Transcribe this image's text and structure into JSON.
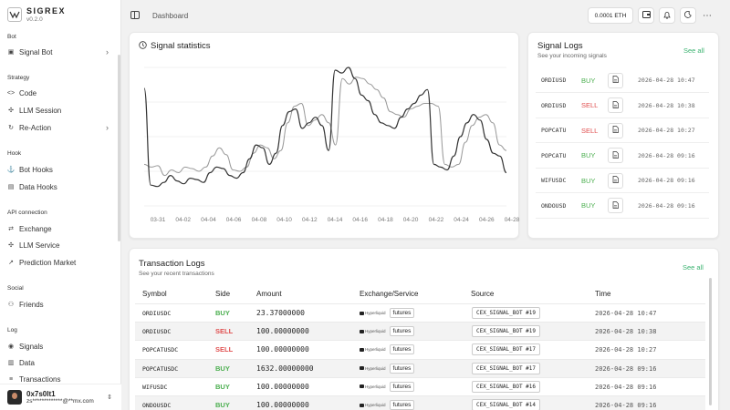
{
  "app": {
    "name": "SIGREX",
    "version": "v0.2.0"
  },
  "sidebar": {
    "sections": [
      {
        "label": "Bot",
        "items": [
          {
            "label": "Signal Bot",
            "icon": "bot-icon",
            "chevron": true
          }
        ]
      },
      {
        "label": "Strategy",
        "items": [
          {
            "label": "Code",
            "icon": "code-icon",
            "chevron": false
          },
          {
            "label": "LLM Session",
            "icon": "llm-icon",
            "chevron": false
          },
          {
            "label": "Re-Action",
            "icon": "reaction-icon",
            "chevron": true
          }
        ]
      },
      {
        "label": "Hook",
        "items": [
          {
            "label": "Bot Hooks",
            "icon": "hook-icon",
            "chevron": false
          },
          {
            "label": "Data Hooks",
            "icon": "data-hook-icon",
            "chevron": false
          }
        ]
      },
      {
        "label": "API connection",
        "items": [
          {
            "label": "Exchange",
            "icon": "exchange-icon",
            "chevron": false
          },
          {
            "label": "LLM Service",
            "icon": "llm-service-icon",
            "chevron": false
          },
          {
            "label": "Prediction Market",
            "icon": "prediction-icon",
            "chevron": false
          }
        ]
      },
      {
        "label": "Social",
        "items": [
          {
            "label": "Friends",
            "icon": "friends-icon",
            "chevron": false
          }
        ]
      },
      {
        "label": "Log",
        "items": [
          {
            "label": "Signals",
            "icon": "signals-icon",
            "chevron": false
          },
          {
            "label": "Data",
            "icon": "data-icon",
            "chevron": false
          },
          {
            "label": "Transactions",
            "icon": "transactions-icon",
            "chevron": false
          }
        ]
      }
    ],
    "user": {
      "name": "0x7s0lt1",
      "email": "zs*************@**mx.com"
    }
  },
  "topbar": {
    "breadcrumb": "Dashboard",
    "balance": "0.0001 ETH"
  },
  "statistics": {
    "title": "Signal statistics",
    "chart_data": {
      "type": "line",
      "x_ticks": [
        "03-31",
        "04-02",
        "04-04",
        "04-06",
        "04-08",
        "04-10",
        "04-12",
        "04-14",
        "04-16",
        "04-18",
        "04-20",
        "04-22",
        "04-24",
        "04-26",
        "04-28"
      ],
      "series": [
        {
          "values": [
            30,
            28,
            29,
            22,
            26,
            24,
            28,
            27,
            25,
            28,
            36,
            42,
            37,
            26,
            25,
            28,
            38,
            44,
            42,
            34,
            40,
            60,
            72,
            74,
            58,
            62,
            66,
            60,
            44,
            92,
            88,
            93,
            92,
            88,
            84,
            78,
            68,
            66,
            64,
            70,
            72,
            74,
            74,
            72,
            30,
            28,
            30,
            46,
            58,
            64,
            66,
            60,
            44,
            40
          ]
        },
        {
          "values": [
            85,
            15,
            14,
            17,
            22,
            18,
            16,
            20,
            19,
            17,
            24,
            28,
            27,
            22,
            20,
            24,
            34,
            44,
            42,
            30,
            38,
            58,
            68,
            70,
            56,
            60,
            64,
            58,
            40,
            98,
            96,
            100,
            92,
            80,
            76,
            66,
            60,
            58,
            56,
            64,
            70,
            74,
            80,
            84,
            30,
            28,
            26,
            36,
            50,
            60,
            66,
            62,
            48,
            38,
            36,
            24
          ]
        }
      ]
    }
  },
  "signal_logs": {
    "title": "Signal Logs",
    "subtitle": "See your incoming signals",
    "see_all": "See all",
    "rows": [
      {
        "symbol": "ORDIUSD",
        "side": "BUY",
        "time": "2026-04-28 10:47"
      },
      {
        "symbol": "ORDIUSD",
        "side": "SELL",
        "time": "2026-04-28 10:38"
      },
      {
        "symbol": "POPCATU",
        "side": "SELL",
        "time": "2026-04-28 10:27"
      },
      {
        "symbol": "POPCATU",
        "side": "BUY",
        "time": "2026-04-28 09:16"
      },
      {
        "symbol": "WIFUSDC",
        "side": "BUY",
        "time": "2026-04-28 09:16"
      },
      {
        "symbol": "ONDOUSD",
        "side": "BUY",
        "time": "2026-04-28 09:16"
      }
    ]
  },
  "transaction_logs": {
    "title": "Transaction Logs",
    "subtitle": "See your recent transactions",
    "see_all": "See all",
    "columns": [
      "Symbol",
      "Side",
      "Amount",
      "Exchange/Service",
      "Source",
      "Time"
    ],
    "rows": [
      {
        "symbol": "ORDIUSDC",
        "side": "BUY",
        "amount": "23.37000000",
        "exchange": "Hyperliquid",
        "market": "futures",
        "source": "CEX_SIGNAL_BOT #19",
        "time": "2026-04-28 10:47"
      },
      {
        "symbol": "ORDIUSDC",
        "side": "SELL",
        "amount": "100.00000000",
        "exchange": "Hyperliquid",
        "market": "futures",
        "source": "CEX_SIGNAL_BOT #19",
        "time": "2026-04-28 10:38"
      },
      {
        "symbol": "POPCATUSDC",
        "side": "SELL",
        "amount": "100.00000000",
        "exchange": "Hyperliquid",
        "market": "futures",
        "source": "CEX_SIGNAL_BOT #17",
        "time": "2026-04-28 10:27"
      },
      {
        "symbol": "POPCATUSDC",
        "side": "BUY",
        "amount": "1632.00000000",
        "exchange": "Hyperliquid",
        "market": "futures",
        "source": "CEX_SIGNAL_BOT #17",
        "time": "2026-04-28 09:16"
      },
      {
        "symbol": "WIFUSDC",
        "side": "BUY",
        "amount": "100.00000000",
        "exchange": "Hyperliquid",
        "market": "futures",
        "source": "CEX_SIGNAL_BOT #16",
        "time": "2026-04-28 09:16"
      },
      {
        "symbol": "ONDOUSDC",
        "side": "BUY",
        "amount": "100.00000000",
        "exchange": "Hyperliquid",
        "market": "futures",
        "source": "CEX_SIGNAL_BOT #14",
        "time": "2026-04-28 09:16"
      }
    ]
  },
  "colors": {
    "buy": "#4caf50",
    "sell": "#e05050",
    "link": "#3cb371"
  }
}
